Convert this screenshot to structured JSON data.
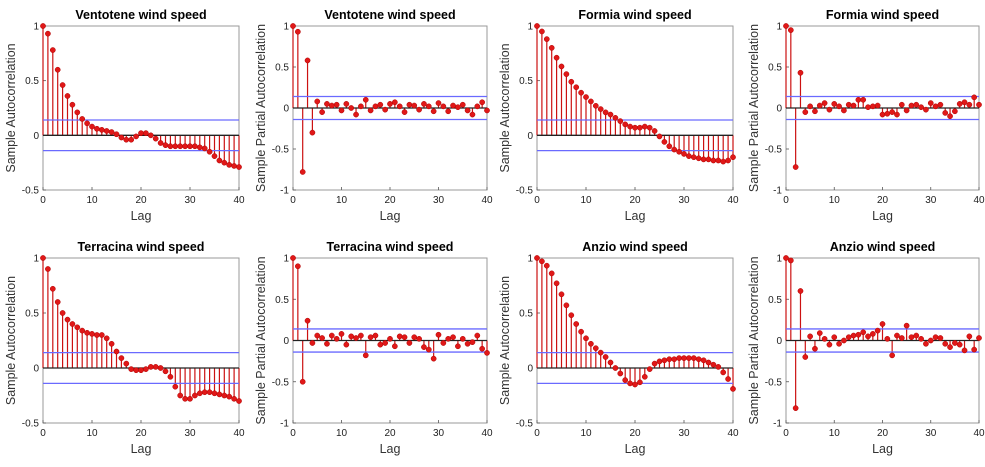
{
  "chart_data": [
    {
      "type": "stem",
      "title": "Ventotene wind speed",
      "xlabel": "Lag",
      "ylabel": "Sample Autocorrelation",
      "xlim": [
        0,
        40
      ],
      "ylim": [
        -0.5,
        1
      ],
      "xticks": [
        "0",
        "10",
        "20",
        "30",
        "40"
      ],
      "yticks": [
        "-0.5",
        "0",
        "0.5",
        "1"
      ],
      "bounds": [
        0.14,
        -0.14
      ],
      "lags": [
        0,
        1,
        2,
        3,
        4,
        5,
        6,
        7,
        8,
        9,
        10,
        11,
        12,
        13,
        14,
        15,
        16,
        17,
        18,
        19,
        20,
        21,
        22,
        23,
        24,
        25,
        26,
        27,
        28,
        29,
        30,
        31,
        32,
        33,
        34,
        35,
        36,
        37,
        38,
        39,
        40
      ],
      "values": [
        1,
        0.93,
        0.78,
        0.6,
        0.46,
        0.36,
        0.28,
        0.21,
        0.15,
        0.11,
        0.08,
        0.06,
        0.05,
        0.04,
        0.03,
        0.01,
        -0.02,
        -0.04,
        -0.04,
        -0.01,
        0.02,
        0.02,
        0,
        -0.03,
        -0.07,
        -0.09,
        -0.1,
        -0.1,
        -0.1,
        -0.1,
        -0.1,
        -0.1,
        -0.11,
        -0.12,
        -0.15,
        -0.19,
        -0.23,
        -0.25,
        -0.27,
        -0.28,
        -0.29
      ]
    },
    {
      "type": "stem",
      "title": "Ventotene wind speed",
      "xlabel": "Lag",
      "ylabel": "Sample Partial Autocorrelation",
      "xlim": [
        0,
        40
      ],
      "ylim": [
        -1,
        1
      ],
      "xticks": [
        "0",
        "10",
        "20",
        "30",
        "40"
      ],
      "yticks": [
        "-1",
        "-0.5",
        "0",
        "0.5",
        "1"
      ],
      "bounds": [
        0.14,
        -0.14
      ],
      "lags": [
        0,
        1,
        2,
        3,
        4,
        5,
        6,
        7,
        8,
        9,
        10,
        11,
        12,
        13,
        14,
        15,
        16,
        17,
        18,
        19,
        20,
        21,
        22,
        23,
        24,
        25,
        26,
        27,
        28,
        29,
        30,
        31,
        32,
        33,
        34,
        35,
        36,
        37,
        38,
        39,
        40
      ],
      "values": [
        1,
        0.93,
        -0.78,
        0.58,
        -0.3,
        0.08,
        -0.05,
        0.05,
        0.03,
        0.04,
        -0.03,
        0.05,
        0,
        -0.08,
        0.02,
        0.1,
        -0.03,
        0.02,
        0.04,
        -0.02,
        0.05,
        0.07,
        0.02,
        -0.05,
        0.04,
        0.03,
        -0.02,
        0.05,
        0.02,
        -0.04,
        0.06,
        0.02,
        -0.04,
        0.03,
        0.01,
        0.04,
        -0.03,
        -0.08,
        0.02,
        0.07,
        -0.03
      ]
    },
    {
      "type": "stem",
      "title": "Formia wind speed",
      "xlabel": "Lag",
      "ylabel": "Sample Autocorrelation",
      "xlim": [
        0,
        40
      ],
      "ylim": [
        -0.5,
        1
      ],
      "xticks": [
        "0",
        "10",
        "20",
        "30",
        "40"
      ],
      "yticks": [
        "-0.5",
        "0",
        "0.5",
        "1"
      ],
      "bounds": [
        0.14,
        -0.14
      ],
      "lags": [
        0,
        1,
        2,
        3,
        4,
        5,
        6,
        7,
        8,
        9,
        10,
        11,
        12,
        13,
        14,
        15,
        16,
        17,
        18,
        19,
        20,
        21,
        22,
        23,
        24,
        25,
        26,
        27,
        28,
        29,
        30,
        31,
        32,
        33,
        34,
        35,
        36,
        37,
        38,
        39,
        40
      ],
      "values": [
        1,
        0.95,
        0.88,
        0.8,
        0.71,
        0.63,
        0.56,
        0.49,
        0.44,
        0.39,
        0.35,
        0.31,
        0.27,
        0.24,
        0.21,
        0.19,
        0.16,
        0.13,
        0.1,
        0.08,
        0.07,
        0.07,
        0.08,
        0.07,
        0.04,
        -0.01,
        -0.06,
        -0.1,
        -0.13,
        -0.15,
        -0.17,
        -0.19,
        -0.2,
        -0.21,
        -0.22,
        -0.22,
        -0.23,
        -0.23,
        -0.24,
        -0.23,
        -0.2
      ]
    },
    {
      "type": "stem",
      "title": "Formia wind speed",
      "xlabel": "Lag",
      "ylabel": "Sample Partial Autocorrelation",
      "xlim": [
        0,
        40
      ],
      "ylim": [
        -1,
        1
      ],
      "xticks": [
        "0",
        "10",
        "20",
        "30",
        "40"
      ],
      "yticks": [
        "-1",
        "-0.5",
        "0",
        "0.5",
        "1"
      ],
      "bounds": [
        0.14,
        -0.14
      ],
      "lags": [
        0,
        1,
        2,
        3,
        4,
        5,
        6,
        7,
        8,
        9,
        10,
        11,
        12,
        13,
        14,
        15,
        16,
        17,
        18,
        19,
        20,
        21,
        22,
        23,
        24,
        25,
        26,
        27,
        28,
        29,
        30,
        31,
        32,
        33,
        34,
        35,
        36,
        37,
        38,
        39,
        40
      ],
      "values": [
        1,
        0.95,
        -0.72,
        0.43,
        -0.05,
        0.02,
        -0.04,
        0.03,
        0.06,
        -0.02,
        0.05,
        0.02,
        -0.03,
        0.04,
        0.03,
        0.1,
        0.1,
        0.01,
        0.02,
        0.03,
        -0.08,
        -0.07,
        -0.05,
        -0.08,
        0.04,
        -0.03,
        0.03,
        0.04,
        0.01,
        -0.02,
        0.06,
        0.02,
        0.04,
        -0.06,
        -0.1,
        -0.04,
        0.05,
        0.07,
        0.04,
        0.13,
        0.04
      ]
    },
    {
      "type": "stem",
      "title": "Terracina wind speed",
      "xlabel": "Lag",
      "ylabel": "Sample Autocorrelation",
      "xlim": [
        0,
        40
      ],
      "ylim": [
        -0.5,
        1
      ],
      "xticks": [
        "0",
        "10",
        "20",
        "30",
        "40"
      ],
      "yticks": [
        "-0.5",
        "0",
        "0.5",
        "1"
      ],
      "bounds": [
        0.14,
        -0.14
      ],
      "lags": [
        0,
        1,
        2,
        3,
        4,
        5,
        6,
        7,
        8,
        9,
        10,
        11,
        12,
        13,
        14,
        15,
        16,
        17,
        18,
        19,
        20,
        21,
        22,
        23,
        24,
        25,
        26,
        27,
        28,
        29,
        30,
        31,
        32,
        33,
        34,
        35,
        36,
        37,
        38,
        39,
        40
      ],
      "values": [
        1,
        0.9,
        0.72,
        0.6,
        0.5,
        0.44,
        0.4,
        0.37,
        0.34,
        0.32,
        0.31,
        0.3,
        0.3,
        0.27,
        0.22,
        0.15,
        0.09,
        0.04,
        -0.01,
        -0.02,
        -0.02,
        -0.01,
        0.01,
        0.01,
        0,
        -0.03,
        -0.08,
        -0.17,
        -0.25,
        -0.28,
        -0.28,
        -0.25,
        -0.23,
        -0.22,
        -0.22,
        -0.23,
        -0.24,
        -0.25,
        -0.26,
        -0.28,
        -0.3
      ]
    },
    {
      "type": "stem",
      "title": "Terracina wind speed",
      "xlabel": "Lag",
      "ylabel": "Sample Partial Autocorrelation",
      "xlim": [
        0,
        40
      ],
      "ylim": [
        -1,
        1
      ],
      "xticks": [
        "0",
        "10",
        "20",
        "30",
        "40"
      ],
      "yticks": [
        "-1",
        "-0.5",
        "0",
        "0.5",
        "1"
      ],
      "bounds": [
        0.14,
        -0.14
      ],
      "lags": [
        0,
        1,
        2,
        3,
        4,
        5,
        6,
        7,
        8,
        9,
        10,
        11,
        12,
        13,
        14,
        15,
        16,
        17,
        18,
        19,
        20,
        21,
        22,
        23,
        24,
        25,
        26,
        27,
        28,
        29,
        30,
        31,
        32,
        33,
        34,
        35,
        36,
        37,
        38,
        39,
        40
      ],
      "values": [
        1,
        0.9,
        -0.5,
        0.24,
        -0.03,
        0.06,
        0.03,
        -0.04,
        0.06,
        0.02,
        0.08,
        -0.05,
        0.05,
        0.03,
        0.06,
        -0.18,
        0.04,
        0.06,
        -0.05,
        -0.03,
        0.02,
        -0.07,
        0.05,
        0.04,
        -0.03,
        0.04,
        0.02,
        -0.08,
        -0.11,
        -0.22,
        0.07,
        -0.03,
        0.02,
        0.04,
        -0.07,
        0.02,
        -0.04,
        -0.02,
        0.06,
        -0.1,
        -0.15
      ]
    },
    {
      "type": "stem",
      "title": "Anzio wind speed",
      "xlabel": "Lag",
      "ylabel": "Sample Autocorrelation",
      "xlim": [
        0,
        40
      ],
      "ylim": [
        -0.5,
        1
      ],
      "xticks": [
        "0",
        "10",
        "20",
        "30",
        "40"
      ],
      "yticks": [
        "-0.5",
        "0",
        "0.5",
        "1"
      ],
      "bounds": [
        0.14,
        -0.14
      ],
      "lags": [
        0,
        1,
        2,
        3,
        4,
        5,
        6,
        7,
        8,
        9,
        10,
        11,
        12,
        13,
        14,
        15,
        16,
        17,
        18,
        19,
        20,
        21,
        22,
        23,
        24,
        25,
        26,
        27,
        28,
        29,
        30,
        31,
        32,
        33,
        34,
        35,
        36,
        37,
        38,
        39,
        40
      ],
      "values": [
        1,
        0.97,
        0.93,
        0.86,
        0.77,
        0.67,
        0.57,
        0.48,
        0.4,
        0.33,
        0.27,
        0.22,
        0.18,
        0.14,
        0.1,
        0.05,
        0,
        -0.05,
        -0.11,
        -0.14,
        -0.15,
        -0.13,
        -0.08,
        -0.01,
        0.04,
        0.06,
        0.07,
        0.08,
        0.08,
        0.09,
        0.09,
        0.09,
        0.09,
        0.08,
        0.07,
        0.05,
        0.03,
        0.01,
        -0.04,
        -0.1,
        -0.19
      ]
    },
    {
      "type": "stem",
      "title": "Anzio wind speed",
      "xlabel": "Lag",
      "ylabel": "Sample Partial Autocorrelation",
      "xlim": [
        0,
        40
      ],
      "ylim": [
        -1,
        1
      ],
      "xticks": [
        "0",
        "10",
        "20",
        "30",
        "40"
      ],
      "yticks": [
        "-1",
        "-0.5",
        "0",
        "0.5",
        "1"
      ],
      "bounds": [
        0.14,
        -0.14
      ],
      "lags": [
        0,
        1,
        2,
        3,
        4,
        5,
        6,
        7,
        8,
        9,
        10,
        11,
        12,
        13,
        14,
        15,
        16,
        17,
        18,
        19,
        20,
        21,
        22,
        23,
        24,
        25,
        26,
        27,
        28,
        29,
        30,
        31,
        32,
        33,
        34,
        35,
        36,
        37,
        38,
        39,
        40
      ],
      "values": [
        1,
        0.97,
        -0.82,
        0.6,
        -0.2,
        0.05,
        -0.1,
        0.09,
        0.02,
        -0.05,
        0.04,
        -0.04,
        0,
        0.04,
        0.06,
        0.07,
        0.1,
        0.05,
        0.08,
        0.12,
        0.2,
        0.02,
        -0.18,
        0.06,
        0.03,
        0.18,
        0.04,
        0.06,
        0.02,
        -0.04,
        0,
        0.04,
        0.03,
        -0.04,
        -0.08,
        -0.03,
        -0.05,
        -0.12,
        0.05,
        -0.11,
        0.03
      ]
    }
  ],
  "colors": {
    "stem": "#cc1111",
    "marker": "#e01818",
    "zero_line": "#222222",
    "bound_line": "#6a6aff",
    "frame": "#999999"
  }
}
